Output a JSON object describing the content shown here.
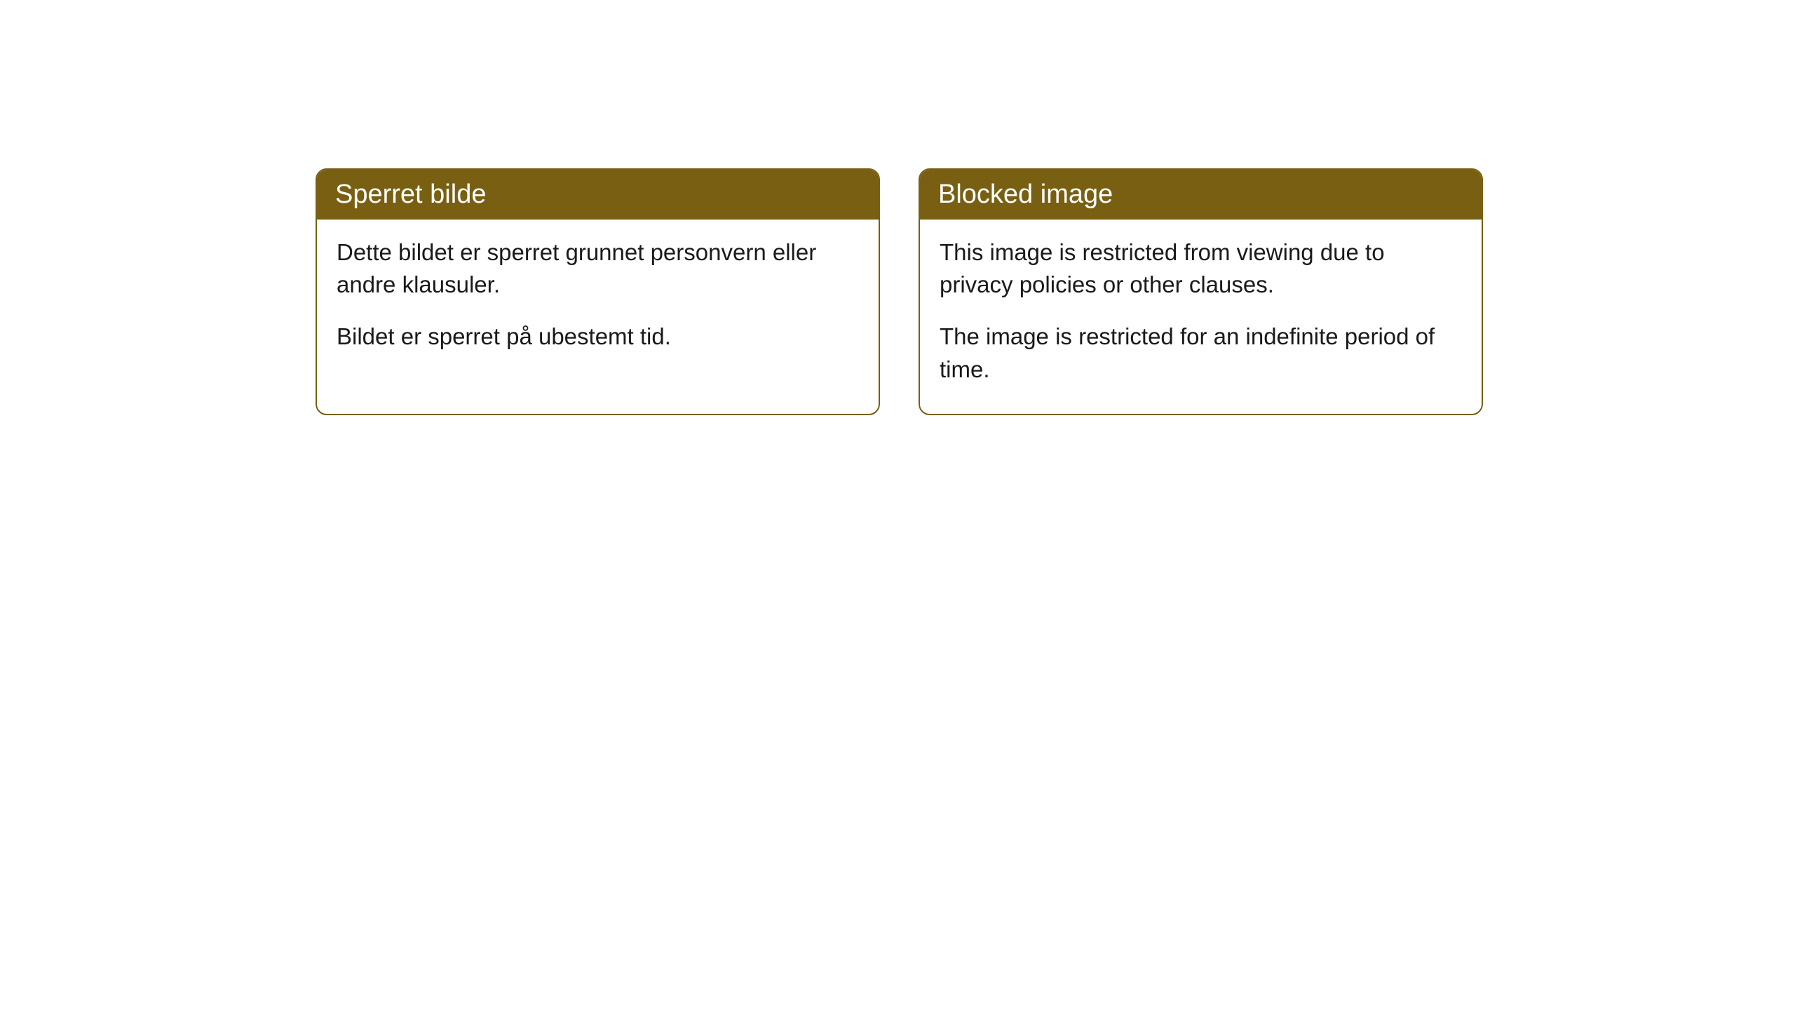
{
  "cards": [
    {
      "title": "Sperret bilde",
      "paragraph1": "Dette bildet er sperret grunnet personvern eller andre klausuler.",
      "paragraph2": "Bildet er sperret på ubestemt tid."
    },
    {
      "title": "Blocked image",
      "paragraph1": "This image is restricted from viewing due to privacy policies or other clauses.",
      "paragraph2": "The image is restricted for an indefinite period of time."
    }
  ],
  "styling": {
    "header_bg_color": "#785f12",
    "header_text_color": "#ffffff",
    "border_color": "#785f12",
    "body_bg_color": "#ffffff",
    "body_text_color": "#1a1a1a",
    "border_radius": 16,
    "title_fontsize": 38,
    "body_fontsize": 33
  }
}
